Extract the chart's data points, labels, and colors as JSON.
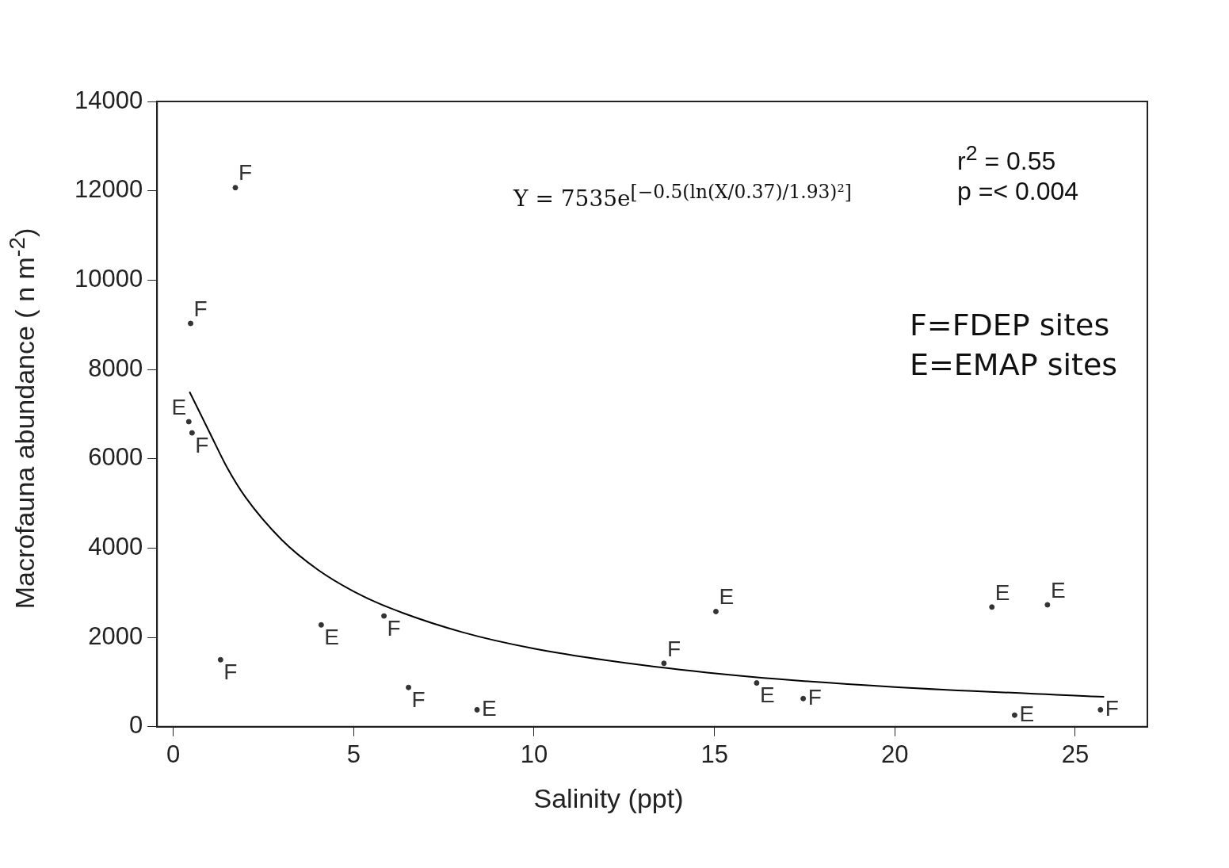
{
  "chart_data": {
    "type": "scatter",
    "xlabel": "Salinity (ppt)",
    "ylabel": "Macrofauna abundance ( n m$^{-2}$)",
    "xlim": [
      -0.45,
      27
    ],
    "xticks": [
      0,
      5,
      10,
      15,
      20,
      25
    ],
    "ylim": [
      0,
      14000
    ],
    "yticks": [
      0,
      2000,
      4000,
      6000,
      8000,
      10000,
      12000,
      14000
    ],
    "series": [
      {
        "name": "F",
        "color": "#333333",
        "x": [
          1.72,
          0.48,
          0.52,
          5.84,
          1.31,
          6.52,
          13.6,
          17.46,
          25.7
        ],
        "values": [
          12070,
          9030,
          6580,
          2480,
          1500,
          880,
          1420,
          630,
          380
        ]
      },
      {
        "name": "E",
        "color": "#333333",
        "x": [
          0.43,
          4.1,
          8.42,
          15.04,
          16.17,
          22.69,
          24.23,
          23.32
        ],
        "values": [
          6830,
          2280,
          380,
          2580,
          980,
          2680,
          2730,
          260
        ]
      },
      {
        "type": "line",
        "color": "#000000",
        "x": [
          0.45,
          1,
          1.5,
          2,
          3,
          4,
          5,
          6,
          8,
          10,
          13,
          16,
          20,
          25.8
        ],
        "values": [
          7500,
          6600,
          5790,
          5140,
          4190,
          3520,
          3030,
          2660,
          2120,
          1750,
          1380,
          1120,
          890,
          670
        ]
      }
    ],
    "annotations": [
      "Y = 7535e$^{[−0.5(ln(X/0.37)/1.93)²]}$",
      "r$^{2}$ =  0.55",
      "p =< 0.004",
      "F=FDEP sites",
      "E=EMAP sites"
    ]
  }
}
